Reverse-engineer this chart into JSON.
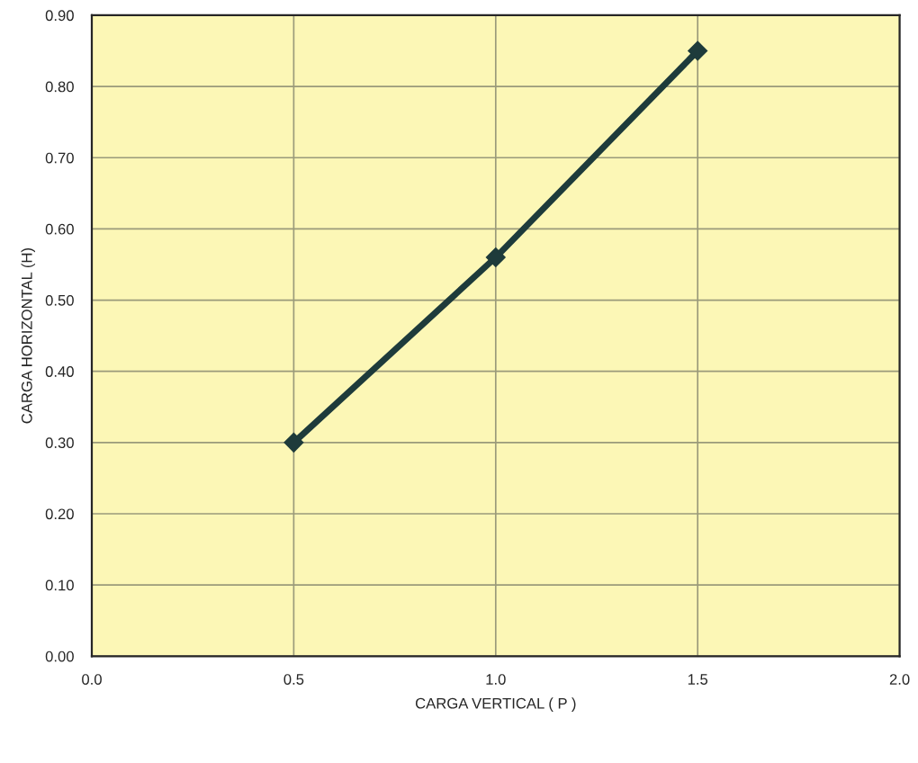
{
  "chart_data": {
    "type": "line",
    "xlabel": "CARGA VERTICAL ( P )",
    "ylabel": "CARGA HORIZONTAL (H)",
    "x": [
      0.5,
      1.0,
      1.5
    ],
    "series": [
      {
        "color": "#1e3b3b",
        "values": [
          0.3,
          0.56,
          0.85
        ]
      }
    ],
    "marker": "diamond",
    "line_style": "solid",
    "grid": true,
    "xlim": [
      0,
      2
    ],
    "ylim": [
      0,
      0.9
    ],
    "xticks": [
      {
        "value": 0,
        "label": "0.0"
      },
      {
        "value": 0.5,
        "label": "0.5"
      },
      {
        "value": 1,
        "label": "1.0"
      },
      {
        "value": 1.5,
        "label": "1.5"
      },
      {
        "value": 2,
        "label": "2.0"
      }
    ],
    "yticks": [
      {
        "value": 0,
        "label": "0.00"
      },
      {
        "value": 0.1,
        "label": "0.10"
      },
      {
        "value": 0.2,
        "label": "0.20"
      },
      {
        "value": 0.3,
        "label": "0.30"
      },
      {
        "value": 0.4,
        "label": "0.40"
      },
      {
        "value": 0.5,
        "label": "0.50"
      },
      {
        "value": 0.6,
        "label": "0.60"
      },
      {
        "value": 0.7,
        "label": "0.70"
      },
      {
        "value": 0.8,
        "label": "0.80"
      },
      {
        "value": 0.9,
        "label": "0.90"
      }
    ]
  }
}
